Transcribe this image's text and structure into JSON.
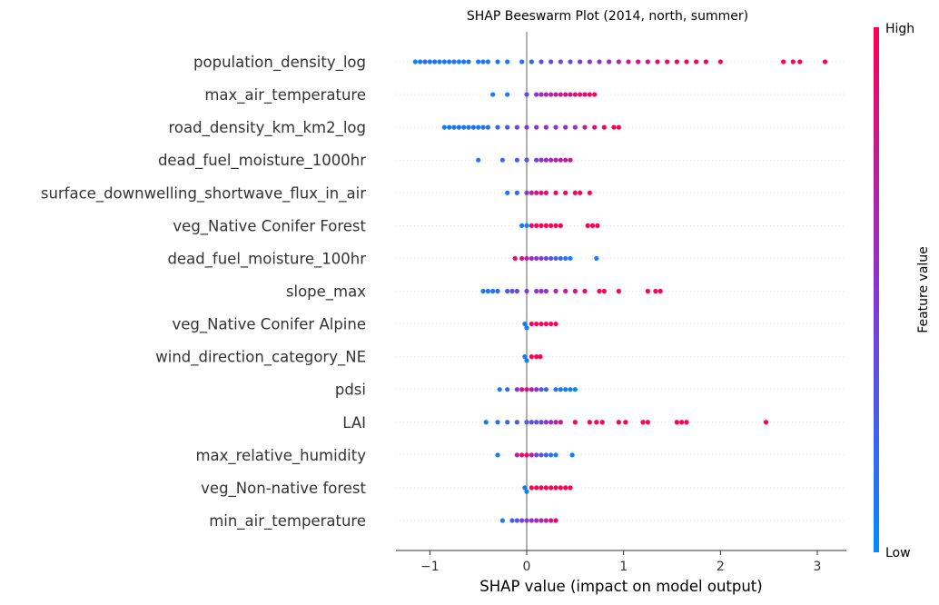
{
  "chart_data": {
    "type": "scatter",
    "subtype": "shap-beeswarm",
    "title": "SHAP Beeswarm Plot (2014, north, summer)",
    "xlabel": "SHAP value (impact on model output)",
    "xlim": [
      -1.35,
      3.3
    ],
    "xticks": [
      {
        "value": -1,
        "label": "−1"
      },
      {
        "value": 0,
        "label": "0"
      },
      {
        "value": 1,
        "label": "1"
      },
      {
        "value": 2,
        "label": "2"
      },
      {
        "value": 3,
        "label": "3"
      }
    ],
    "colorbar": {
      "label": "Feature value",
      "high": "High",
      "low": "Low",
      "low_color": "#008bfb",
      "high_color": "#ff0052"
    },
    "features": [
      {
        "name": "population_density_log",
        "points": [
          [
            -1.15,
            0.05
          ],
          [
            -1.1,
            0.1
          ],
          [
            -1.05,
            0.2
          ],
          [
            -1.0,
            0.1
          ],
          [
            -0.95,
            0.15
          ],
          [
            -0.9,
            0.08
          ],
          [
            -0.85,
            0.12
          ],
          [
            -0.8,
            0.1
          ],
          [
            -0.75,
            0.15
          ],
          [
            -0.7,
            0.05
          ],
          [
            -0.65,
            0.1
          ],
          [
            -0.6,
            0.12
          ],
          [
            -0.5,
            0.1
          ],
          [
            -0.45,
            0.08
          ],
          [
            -0.4,
            0.12
          ],
          [
            -0.3,
            0.1
          ],
          [
            -0.2,
            0.1
          ],
          [
            -0.05,
            0.15
          ],
          [
            0.05,
            0.2
          ],
          [
            0.15,
            0.3
          ],
          [
            0.25,
            0.35
          ],
          [
            0.35,
            0.4
          ],
          [
            0.45,
            0.4
          ],
          [
            0.55,
            0.45
          ],
          [
            0.65,
            0.5
          ],
          [
            0.75,
            0.55
          ],
          [
            0.85,
            0.6
          ],
          [
            0.95,
            0.7
          ],
          [
            1.05,
            0.75
          ],
          [
            1.15,
            0.85
          ],
          [
            1.25,
            0.8
          ],
          [
            1.35,
            0.9
          ],
          [
            1.45,
            0.9
          ],
          [
            1.55,
            0.95
          ],
          [
            1.65,
            0.95
          ],
          [
            1.75,
            0.95
          ],
          [
            1.85,
            0.95
          ],
          [
            2.0,
            1.0
          ],
          [
            2.65,
            1.0
          ],
          [
            2.75,
            1.0
          ],
          [
            2.82,
            1.0
          ],
          [
            3.08,
            1.0
          ]
        ]
      },
      {
        "name": "max_air_temperature",
        "points": [
          [
            -0.35,
            0.1
          ],
          [
            -0.2,
            0.1
          ],
          [
            0.0,
            0.3
          ],
          [
            0.1,
            0.5
          ],
          [
            0.15,
            0.6
          ],
          [
            0.2,
            0.6
          ],
          [
            0.25,
            0.7
          ],
          [
            0.3,
            0.7
          ],
          [
            0.35,
            0.75
          ],
          [
            0.4,
            0.8
          ],
          [
            0.45,
            0.8
          ],
          [
            0.5,
            0.85
          ],
          [
            0.55,
            0.9
          ],
          [
            0.6,
            0.9
          ],
          [
            0.65,
            0.95
          ],
          [
            0.7,
            0.95
          ]
        ]
      },
      {
        "name": "road_density_km_km2_log",
        "points": [
          [
            -0.85,
            0.05
          ],
          [
            -0.8,
            0.1
          ],
          [
            -0.75,
            0.1
          ],
          [
            -0.7,
            0.15
          ],
          [
            -0.65,
            0.1
          ],
          [
            -0.6,
            0.1
          ],
          [
            -0.55,
            0.15
          ],
          [
            -0.5,
            0.1
          ],
          [
            -0.45,
            0.12
          ],
          [
            -0.4,
            0.15
          ],
          [
            -0.3,
            0.2
          ],
          [
            -0.2,
            0.3
          ],
          [
            -0.1,
            0.4
          ],
          [
            0.0,
            0.45
          ],
          [
            0.1,
            0.5
          ],
          [
            0.2,
            0.55
          ],
          [
            0.3,
            0.5
          ],
          [
            0.4,
            0.6
          ],
          [
            0.5,
            0.55
          ],
          [
            0.6,
            0.7
          ],
          [
            0.7,
            0.85
          ],
          [
            0.8,
            0.95
          ],
          [
            0.9,
            1.0
          ],
          [
            0.95,
            1.0
          ]
        ]
      },
      {
        "name": "dead_fuel_moisture_1000hr",
        "points": [
          [
            -0.5,
            0.1
          ],
          [
            -0.25,
            0.2
          ],
          [
            -0.1,
            0.25
          ],
          [
            0.0,
            0.3
          ],
          [
            0.1,
            0.4
          ],
          [
            0.15,
            0.5
          ],
          [
            0.2,
            0.55
          ],
          [
            0.25,
            0.6
          ],
          [
            0.3,
            0.65
          ],
          [
            0.35,
            0.7
          ],
          [
            0.4,
            0.7
          ],
          [
            0.45,
            0.75
          ]
        ]
      },
      {
        "name": "surface_downwelling_shortwave_flux_in_air",
        "points": [
          [
            -0.2,
            0.1
          ],
          [
            -0.1,
            0.2
          ],
          [
            0.0,
            0.5
          ],
          [
            0.05,
            0.7
          ],
          [
            0.1,
            0.85
          ],
          [
            0.15,
            0.9
          ],
          [
            0.2,
            0.9
          ],
          [
            0.3,
            0.95
          ],
          [
            0.4,
            0.95
          ],
          [
            0.5,
            0.95
          ],
          [
            0.55,
            1.0
          ],
          [
            0.65,
            1.0
          ]
        ]
      },
      {
        "name": "veg_Native Conifer Forest ",
        "points": [
          [
            -0.05,
            0.1
          ],
          [
            0.0,
            0.05
          ],
          [
            0.05,
            0.9
          ],
          [
            0.1,
            1.0
          ],
          [
            0.15,
            1.0
          ],
          [
            0.2,
            1.0
          ],
          [
            0.25,
            1.0
          ],
          [
            0.3,
            1.0
          ],
          [
            0.35,
            1.0
          ],
          [
            0.63,
            1.0
          ],
          [
            0.68,
            1.0
          ],
          [
            0.73,
            1.0
          ]
        ]
      },
      {
        "name": "dead_fuel_moisture_100hr",
        "points": [
          [
            -0.12,
            0.9
          ],
          [
            -0.05,
            0.8
          ],
          [
            0.0,
            0.7
          ],
          [
            0.05,
            0.55
          ],
          [
            0.1,
            0.5
          ],
          [
            0.15,
            0.45
          ],
          [
            0.2,
            0.4
          ],
          [
            0.25,
            0.35
          ],
          [
            0.3,
            0.25
          ],
          [
            0.35,
            0.2
          ],
          [
            0.4,
            0.15
          ],
          [
            0.45,
            0.1
          ],
          [
            0.72,
            0.05
          ]
        ]
      },
      {
        "name": "slope_max",
        "points": [
          [
            -0.45,
            0.1
          ],
          [
            -0.4,
            0.15
          ],
          [
            -0.35,
            0.1
          ],
          [
            -0.3,
            0.2
          ],
          [
            -0.2,
            0.3
          ],
          [
            -0.15,
            0.35
          ],
          [
            -0.1,
            0.4
          ],
          [
            0.0,
            0.45
          ],
          [
            0.1,
            0.5
          ],
          [
            0.15,
            0.55
          ],
          [
            0.2,
            0.5
          ],
          [
            0.3,
            0.6
          ],
          [
            0.4,
            0.75
          ],
          [
            0.5,
            0.85
          ],
          [
            0.6,
            0.9
          ],
          [
            0.75,
            1.0
          ],
          [
            0.8,
            1.0
          ],
          [
            0.95,
            1.0
          ],
          [
            1.25,
            1.0
          ],
          [
            1.33,
            1.0
          ],
          [
            1.38,
            1.0
          ]
        ]
      },
      {
        "name": "veg_Native Conifer Alpine ",
        "points": [
          [
            -0.02,
            0.1
          ],
          [
            0.0,
            0.05
          ],
          [
            0.05,
            0.95
          ],
          [
            0.1,
            1.0
          ],
          [
            0.15,
            1.0
          ],
          [
            0.2,
            1.0
          ],
          [
            0.25,
            1.0
          ],
          [
            0.3,
            1.0
          ]
        ]
      },
      {
        "name": "wind_direction_category_NE",
        "points": [
          [
            -0.02,
            0.1
          ],
          [
            0.0,
            0.05
          ],
          [
            0.05,
            1.0
          ],
          [
            0.1,
            1.0
          ],
          [
            0.14,
            1.0
          ]
        ]
      },
      {
        "name": "pdsi",
        "points": [
          [
            -0.28,
            0.1
          ],
          [
            -0.2,
            0.2
          ],
          [
            -0.1,
            0.5
          ],
          [
            -0.05,
            0.8
          ],
          [
            0.0,
            0.9
          ],
          [
            0.05,
            0.7
          ],
          [
            0.1,
            0.5
          ],
          [
            0.15,
            0.3
          ],
          [
            0.2,
            0.2
          ],
          [
            0.3,
            0.15
          ],
          [
            0.35,
            0.1
          ],
          [
            0.4,
            0.1
          ],
          [
            0.45,
            0.05
          ],
          [
            0.5,
            0.05
          ]
        ]
      },
      {
        "name": "LAI",
        "points": [
          [
            -0.42,
            0.1
          ],
          [
            -0.3,
            0.15
          ],
          [
            -0.2,
            0.2
          ],
          [
            -0.1,
            0.3
          ],
          [
            0.0,
            0.25
          ],
          [
            0.05,
            0.35
          ],
          [
            0.1,
            0.3
          ],
          [
            0.15,
            0.4
          ],
          [
            0.2,
            0.5
          ],
          [
            0.25,
            0.6
          ],
          [
            0.3,
            0.7
          ],
          [
            0.35,
            0.8
          ],
          [
            0.5,
            1.0
          ],
          [
            0.65,
            1.0
          ],
          [
            0.72,
            1.0
          ],
          [
            0.78,
            1.0
          ],
          [
            0.95,
            1.0
          ],
          [
            1.02,
            1.0
          ],
          [
            1.2,
            1.0
          ],
          [
            1.25,
            1.0
          ],
          [
            1.55,
            1.0
          ],
          [
            1.6,
            1.0
          ],
          [
            1.65,
            1.0
          ],
          [
            2.47,
            1.0
          ]
        ]
      },
      {
        "name": "max_relative_humidity",
        "points": [
          [
            -0.3,
            0.1
          ],
          [
            -0.1,
            0.7
          ],
          [
            -0.05,
            0.9
          ],
          [
            0.0,
            0.95
          ],
          [
            0.05,
            0.7
          ],
          [
            0.1,
            0.4
          ],
          [
            0.15,
            0.3
          ],
          [
            0.2,
            0.2
          ],
          [
            0.25,
            0.15
          ],
          [
            0.3,
            0.1
          ],
          [
            0.47,
            0.05
          ]
        ]
      },
      {
        "name": "veg_Non-native forest ",
        "points": [
          [
            -0.02,
            0.1
          ],
          [
            0.0,
            0.05
          ],
          [
            0.05,
            1.0
          ],
          [
            0.1,
            1.0
          ],
          [
            0.15,
            1.0
          ],
          [
            0.2,
            1.0
          ],
          [
            0.25,
            1.0
          ],
          [
            0.3,
            1.0
          ],
          [
            0.35,
            1.0
          ],
          [
            0.4,
            1.0
          ],
          [
            0.45,
            1.0
          ]
        ]
      },
      {
        "name": "min_air_temperature",
        "points": [
          [
            -0.25,
            0.1
          ],
          [
            -0.15,
            0.2
          ],
          [
            -0.1,
            0.3
          ],
          [
            -0.05,
            0.4
          ],
          [
            0.0,
            0.5
          ],
          [
            0.05,
            0.55
          ],
          [
            0.1,
            0.6
          ],
          [
            0.15,
            0.65
          ],
          [
            0.2,
            0.7
          ],
          [
            0.25,
            0.8
          ],
          [
            0.3,
            0.9
          ]
        ]
      }
    ]
  }
}
